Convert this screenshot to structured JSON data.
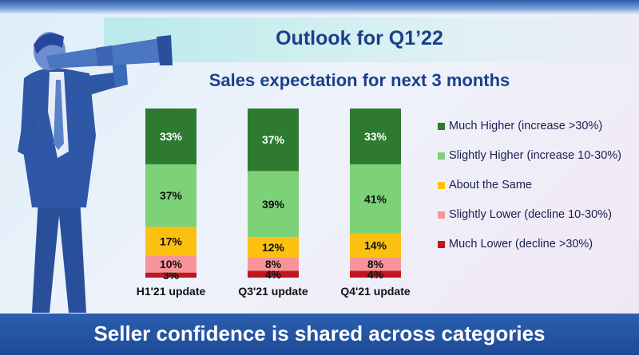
{
  "page": {
    "title": "Outlook for Q1’22",
    "footer": "Seller confidence is shared across categories"
  },
  "illustration": {
    "icon": "businessman-telescope-icon"
  },
  "chart_data": {
    "type": "bar",
    "stacked": true,
    "title": "Sales expectation for next 3 months",
    "categories": [
      "H1'21 update",
      "Q3'21 update",
      "Q4'21 update"
    ],
    "series": [
      {
        "name": "Much Lower (decline >30%)",
        "color": "#c0161f",
        "values": [
          3,
          4,
          4
        ]
      },
      {
        "name": "Slightly Lower (decline 10-30%)",
        "color": "#f7949a",
        "values": [
          10,
          8,
          8
        ]
      },
      {
        "name": "About the Same",
        "color": "#fcc011",
        "values": [
          17,
          12,
          14
        ]
      },
      {
        "name": "Slightly Higher (increase 10-30%)",
        "color": "#7dd177",
        "values": [
          37,
          39,
          41
        ]
      },
      {
        "name": "Much Higher (increase >30%)",
        "color": "#2f7a31",
        "values": [
          33,
          37,
          33
        ]
      }
    ],
    "value_suffix": "%",
    "legend_position": "right",
    "legend_order": [
      4,
      3,
      2,
      1,
      0
    ],
    "grid": false
  }
}
